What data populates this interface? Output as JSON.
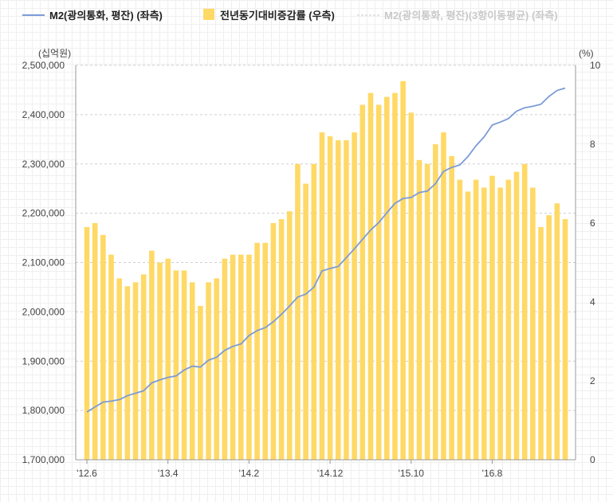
{
  "chart_data": {
    "type": "bar+line",
    "legend": [
      {
        "label": "M2(광의통화, 평잔) (좌측)",
        "kind": "line",
        "color": "#7c9bd6",
        "dimmed": false
      },
      {
        "label": "전년동기대비증감률 (우측)",
        "kind": "bar",
        "color": "#ffd966",
        "dimmed": false
      },
      {
        "label": "M2(광의통화, 평잔)(3항이동평균) (좌측)",
        "kind": "dash",
        "color": "#cccccc",
        "dimmed": true
      }
    ],
    "left_axis": {
      "unit": "(십억원)",
      "min": 1700000,
      "max": 2500000,
      "ticks": [
        "1,700,000",
        "1,800,000",
        "1,900,000",
        "2,000,000",
        "2,100,000",
        "2,200,000",
        "2,300,000",
        "2,400,000",
        "2,500,000"
      ]
    },
    "right_axis": {
      "unit": "(%)",
      "min": 0,
      "max": 10,
      "ticks": [
        "0",
        "2",
        "4",
        "6",
        "8",
        "10"
      ]
    },
    "x_tick_labels": [
      {
        "label": "'12.6",
        "index": 0
      },
      {
        "label": "'13.4",
        "index": 10
      },
      {
        "label": "'14.2",
        "index": 20
      },
      {
        "label": "'14.12",
        "index": 30
      },
      {
        "label": "'15.10",
        "index": 40
      },
      {
        "label": "'16.8",
        "index": 50
      }
    ],
    "growth_rate_pct": [
      5.9,
      6.0,
      5.7,
      5.2,
      4.6,
      4.4,
      4.5,
      4.7,
      5.3,
      5.0,
      5.1,
      4.8,
      4.8,
      4.5,
      3.9,
      4.5,
      4.6,
      5.1,
      5.2,
      5.2,
      5.2,
      5.5,
      5.5,
      6.0,
      6.1,
      6.3,
      7.5,
      7.0,
      7.5,
      8.3,
      8.2,
      8.1,
      8.1,
      8.3,
      9.0,
      9.3,
      9.0,
      9.2,
      9.3,
      9.6,
      8.8,
      7.6,
      7.5,
      8.0,
      8.3,
      7.7,
      7.1,
      6.8,
      7.1,
      6.9,
      7.2,
      6.9,
      7.1,
      7.3,
      7.5,
      6.9,
      5.9,
      6.2,
      6.5,
      6.1
    ],
    "m2_billion_won": [
      1797000,
      1807000,
      1817000,
      1819000,
      1822000,
      1830000,
      1835000,
      1840000,
      1856000,
      1862000,
      1867000,
      1870000,
      1882000,
      1890000,
      1888000,
      1902000,
      1908000,
      1922000,
      1930000,
      1935000,
      1952000,
      1962000,
      1968000,
      1980000,
      1995000,
      2012000,
      2030000,
      2036000,
      2050000,
      2083000,
      2088000,
      2092000,
      2110000,
      2128000,
      2147000,
      2166000,
      2181000,
      2201000,
      2220000,
      2230000,
      2232000,
      2242000,
      2245000,
      2260000,
      2285000,
      2293000,
      2298000,
      2315000,
      2337000,
      2355000,
      2379000,
      2385000,
      2392000,
      2407000,
      2414000,
      2417000,
      2421000,
      2437000,
      2449000,
      2454000
    ]
  }
}
